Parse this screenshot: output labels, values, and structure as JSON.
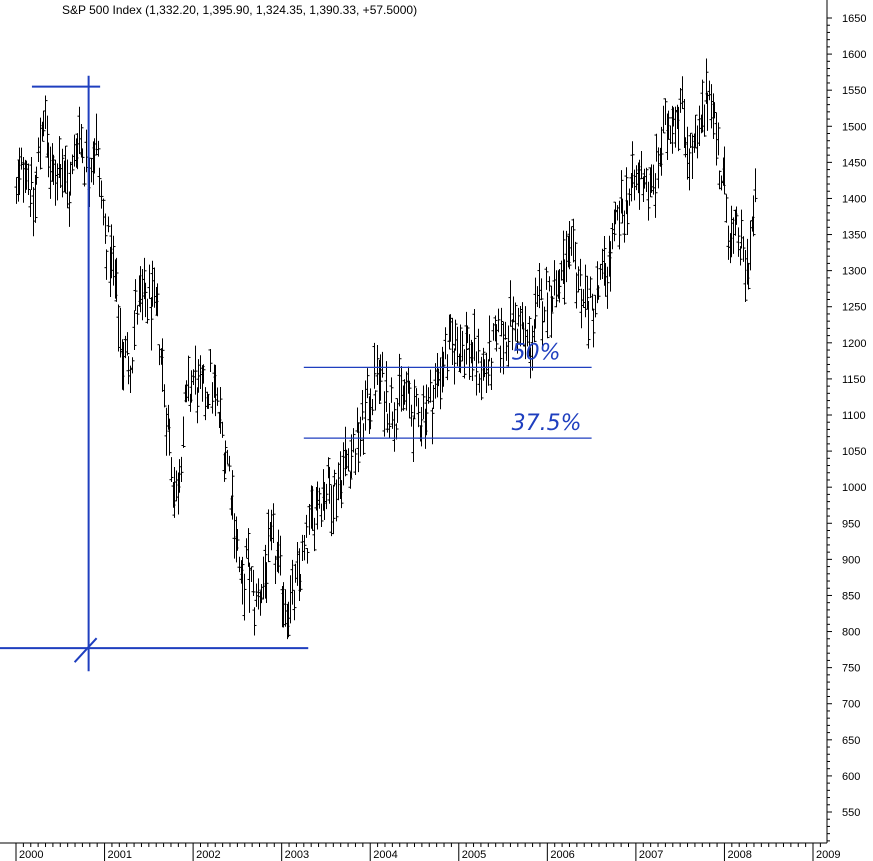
{
  "chart_data": {
    "type": "bar",
    "subtype": "ohlc",
    "title": "S&P 500 Index (1,332.20, 1,395.90, 1,324.35, 1,390.33, +57.5000)",
    "xlabel": "",
    "ylabel": "",
    "ylim": [
      500,
      1675
    ],
    "xlim": [
      2000.0,
      2009.1
    ],
    "y_ticks": [
      550,
      600,
      650,
      700,
      750,
      800,
      850,
      900,
      950,
      1000,
      1050,
      1100,
      1150,
      1200,
      1250,
      1300,
      1350,
      1400,
      1450,
      1500,
      1550,
      1600,
      1650
    ],
    "x_ticks": [
      {
        "value": 2000,
        "label": "2000"
      },
      {
        "value": 2001,
        "label": "2001"
      },
      {
        "value": 2002,
        "label": "2002"
      },
      {
        "value": 2003,
        "label": "2003"
      },
      {
        "value": 2004,
        "label": "2004"
      },
      {
        "value": 2005,
        "label": "2005"
      },
      {
        "value": 2006,
        "label": "2006"
      },
      {
        "value": 2007,
        "label": "2007"
      },
      {
        "value": 2008,
        "label": "2008"
      },
      {
        "value": 2009,
        "label": "2009"
      }
    ],
    "series": [
      {
        "points": [
          {
            "t": 2000.0,
            "v": 1400
          },
          {
            "t": 2000.1,
            "v": 1460
          },
          {
            "t": 2000.2,
            "v": 1380
          },
          {
            "t": 2000.3,
            "v": 1527
          },
          {
            "t": 2000.4,
            "v": 1420
          },
          {
            "t": 2000.5,
            "v": 1460
          },
          {
            "t": 2000.6,
            "v": 1400
          },
          {
            "t": 2000.7,
            "v": 1500
          },
          {
            "t": 2000.8,
            "v": 1440
          },
          {
            "t": 2000.9,
            "v": 1480
          },
          {
            "t": 2001.0,
            "v": 1350
          },
          {
            "t": 2001.1,
            "v": 1300
          },
          {
            "t": 2001.2,
            "v": 1180
          },
          {
            "t": 2001.3,
            "v": 1180
          },
          {
            "t": 2001.35,
            "v": 1250
          },
          {
            "t": 2001.5,
            "v": 1260
          },
          {
            "t": 2001.6,
            "v": 1230
          },
          {
            "t": 2001.7,
            "v": 1100
          },
          {
            "t": 2001.8,
            "v": 980
          },
          {
            "t": 2001.9,
            "v": 1100
          },
          {
            "t": 2002.0,
            "v": 1150
          },
          {
            "t": 2002.1,
            "v": 1120
          },
          {
            "t": 2002.2,
            "v": 1150
          },
          {
            "t": 2002.3,
            "v": 1090
          },
          {
            "t": 2002.4,
            "v": 1030
          },
          {
            "t": 2002.5,
            "v": 920
          },
          {
            "t": 2002.55,
            "v": 840
          },
          {
            "t": 2002.6,
            "v": 900
          },
          {
            "t": 2002.7,
            "v": 830
          },
          {
            "t": 2002.8,
            "v": 880
          },
          {
            "t": 2002.9,
            "v": 920
          },
          {
            "t": 2003.0,
            "v": 860
          },
          {
            "t": 2003.1,
            "v": 830
          },
          {
            "t": 2003.2,
            "v": 880
          },
          {
            "t": 2003.3,
            "v": 930
          },
          {
            "t": 2003.4,
            "v": 990
          },
          {
            "t": 2003.5,
            "v": 1000
          },
          {
            "t": 2003.6,
            "v": 1000
          },
          {
            "t": 2003.7,
            "v": 1030
          },
          {
            "t": 2003.8,
            "v": 1050
          },
          {
            "t": 2003.9,
            "v": 1080
          },
          {
            "t": 2004.0,
            "v": 1130
          },
          {
            "t": 2004.1,
            "v": 1150
          },
          {
            "t": 2004.2,
            "v": 1120
          },
          {
            "t": 2004.3,
            "v": 1110
          },
          {
            "t": 2004.4,
            "v": 1130
          },
          {
            "t": 2004.5,
            "v": 1090
          },
          {
            "t": 2004.6,
            "v": 1110
          },
          {
            "t": 2004.7,
            "v": 1120
          },
          {
            "t": 2004.8,
            "v": 1170
          },
          {
            "t": 2004.9,
            "v": 1190
          },
          {
            "t": 2005.0,
            "v": 1200
          },
          {
            "t": 2005.1,
            "v": 1200
          },
          {
            "t": 2005.2,
            "v": 1170
          },
          {
            "t": 2005.3,
            "v": 1160
          },
          {
            "t": 2005.4,
            "v": 1190
          },
          {
            "t": 2005.5,
            "v": 1210
          },
          {
            "t": 2005.6,
            "v": 1230
          },
          {
            "t": 2005.7,
            "v": 1220
          },
          {
            "t": 2005.8,
            "v": 1190
          },
          {
            "t": 2005.9,
            "v": 1250
          },
          {
            "t": 2006.0,
            "v": 1270
          },
          {
            "t": 2006.1,
            "v": 1280
          },
          {
            "t": 2006.2,
            "v": 1300
          },
          {
            "t": 2006.3,
            "v": 1310
          },
          {
            "t": 2006.4,
            "v": 1270
          },
          {
            "t": 2006.5,
            "v": 1240
          },
          {
            "t": 2006.6,
            "v": 1280
          },
          {
            "t": 2006.7,
            "v": 1310
          },
          {
            "t": 2006.8,
            "v": 1370
          },
          {
            "t": 2006.9,
            "v": 1400
          },
          {
            "t": 2007.0,
            "v": 1420
          },
          {
            "t": 2007.1,
            "v": 1440
          },
          {
            "t": 2007.15,
            "v": 1400
          },
          {
            "t": 2007.2,
            "v": 1420
          },
          {
            "t": 2007.3,
            "v": 1480
          },
          {
            "t": 2007.4,
            "v": 1520
          },
          {
            "t": 2007.5,
            "v": 1530
          },
          {
            "t": 2007.55,
            "v": 1500
          },
          {
            "t": 2007.6,
            "v": 1460
          },
          {
            "t": 2007.7,
            "v": 1470
          },
          {
            "t": 2007.8,
            "v": 1540
          },
          {
            "t": 2007.85,
            "v": 1560
          },
          {
            "t": 2007.9,
            "v": 1490
          },
          {
            "t": 2007.95,
            "v": 1440
          },
          {
            "t": 2008.0,
            "v": 1410
          },
          {
            "t": 2008.05,
            "v": 1360
          },
          {
            "t": 2008.1,
            "v": 1330
          },
          {
            "t": 2008.15,
            "v": 1350
          },
          {
            "t": 2008.2,
            "v": 1320
          },
          {
            "t": 2008.25,
            "v": 1300
          },
          {
            "t": 2008.3,
            "v": 1350
          },
          {
            "t": 2008.35,
            "v": 1390
          }
        ]
      }
    ],
    "annotations": {
      "color": "#1f3fbf",
      "swing_high": {
        "t_start": 2000.18,
        "t_end": 2000.95,
        "v": 1555
      },
      "swing_low": {
        "t_start": 1999.8,
        "t_end": 2003.3,
        "v": 777
      },
      "vertical_marker": {
        "t": 2000.82,
        "v_top": 1570,
        "v_bottom": 745
      },
      "retracement_50": {
        "label": "50%",
        "t_start": 2003.25,
        "t_end": 2006.5,
        "v": 1166
      },
      "retracement_37_5": {
        "label": "37.5%",
        "t_start": 2003.25,
        "t_end": 2006.5,
        "v": 1068
      }
    },
    "grid": false
  }
}
